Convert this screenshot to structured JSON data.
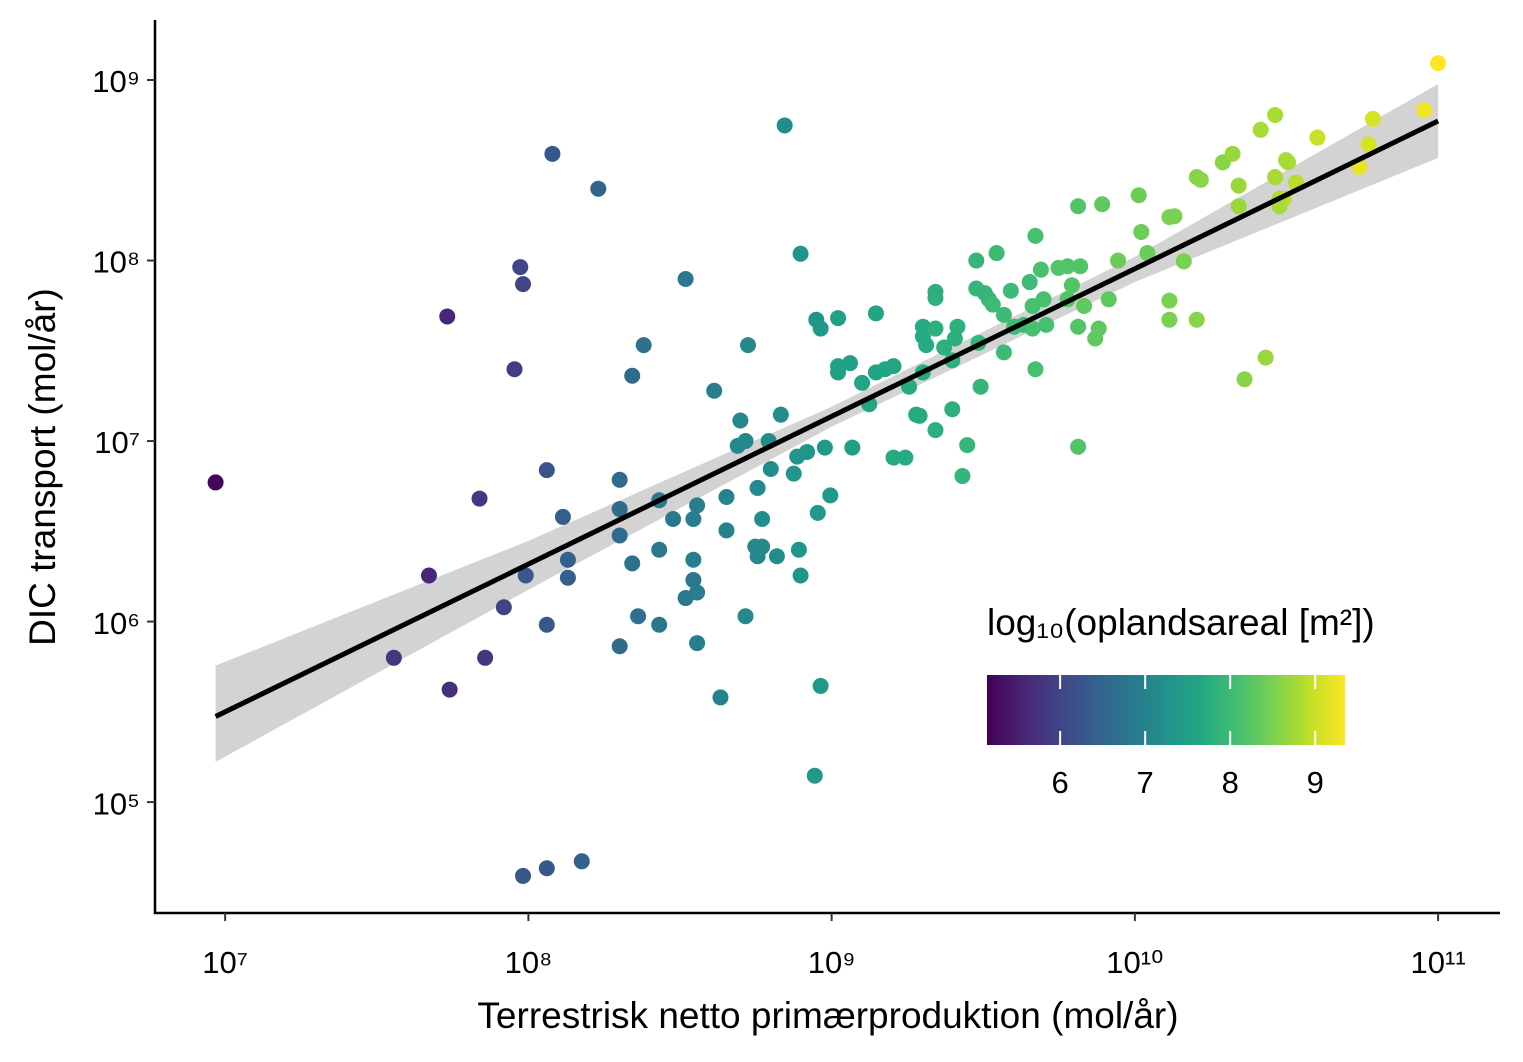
{
  "chart_data": {
    "type": "scatter",
    "x_label": "Terrestrisk netto primærproduktion (mol/år)",
    "y_label": "DIC transport (mol/år)",
    "log_x": true,
    "log_y": true,
    "grid": false,
    "xlim": [
      5870000.0,
      160000000000.0
    ],
    "ylim": [
      24300.0,
      2150000000.0
    ],
    "xticks": [
      {
        "value": 10000000.0,
        "label": "10⁷"
      },
      {
        "value": 100000000.0,
        "label": "10⁸"
      },
      {
        "value": 1000000000.0,
        "label": "10⁹"
      },
      {
        "value": 10000000000.0,
        "label": "10¹⁰"
      },
      {
        "value": 100000000000.0,
        "label": "10¹¹"
      }
    ],
    "yticks": [
      {
        "value": 100000.0,
        "label": "10⁵"
      },
      {
        "value": 1000000.0,
        "label": "10⁶"
      },
      {
        "value": 10000000.0,
        "label": "10⁷"
      },
      {
        "value": 100000000.0,
        "label": "10⁸"
      },
      {
        "value": 1000000000.0,
        "label": "10⁹"
      }
    ],
    "colormap": "viridis",
    "colorbar": {
      "title": "log₁₀(oplandsareal [m²])",
      "lim": [
        5.14,
        9.35
      ],
      "ticks": [
        6,
        7,
        8,
        9
      ],
      "position": "bottom-right"
    },
    "fit": {
      "color": "#000000",
      "band_color": "#d3d3d3",
      "x": [
        9300000.0,
        100000000.0,
        1000000000.0,
        10000000000.0,
        100000000000.0
      ],
      "y": [
        298000.0,
        2080000.0,
        13700000.0,
        90000000.0,
        593000000.0
      ],
      "lower": [
        167000.0,
        1500000.0,
        12000000.0,
        76000000.0,
        370000000.0
      ],
      "upper": [
        570000.0,
        2800000.0,
        15500000.0,
        105000000.0,
        950000000.0
      ]
    },
    "x": [
      9300000.0,
      36000000.0,
      47000000.0,
      54000000.0,
      55000000.0,
      69000000.0,
      72000000.0,
      83000000.0,
      90000000.0,
      94000000.0,
      96000000.0,
      98000000.0,
      96000000.0,
      115000000.0,
      150000000.0,
      115000000.0,
      115000000.0,
      120000000.0,
      130000000.0,
      135000000.0,
      135000000.0,
      170000000.0,
      200000000.0,
      200000000.0,
      200000000.0,
      200000000.0,
      220000000.0,
      220000000.0,
      230000000.0,
      240000000.0,
      270000000.0,
      270000000.0,
      270000000.0,
      300000000.0,
      330000000.0,
      330000000.0,
      350000000.0,
      360000000.0,
      350000000.0,
      360000000.0,
      350000000.0,
      360000000.0,
      410000000.0,
      430000000.0,
      450000000.0,
      450000000.0,
      500000000.0,
      490000000.0,
      520000000.0,
      520000000.0,
      530000000.0,
      560000000.0,
      570000000.0,
      570000000.0,
      590000000.0,
      590000000.0,
      620000000.0,
      630000000.0,
      660000000.0,
      680000000.0,
      700000000.0,
      750000000.0,
      770000000.0,
      780000000.0,
      790000000.0,
      790000000.0,
      830000000.0,
      880000000.0,
      890000000.0,
      900000000.0,
      920000000.0,
      920000000.0,
      950000000.0,
      990000000.0,
      1050000000.0,
      1050000000.0,
      1050000000.0,
      1150000000.0,
      1170000000.0,
      1260000000.0,
      1330000000.0,
      1400000000.0,
      1400000000.0,
      1500000000.0,
      1600000000.0,
      1600000000.0,
      1750000000.0,
      1800000000.0,
      1900000000.0,
      2000000000.0,
      1950000000.0,
      2000000000.0,
      2050000000.0,
      2000000000.0,
      2200000000.0,
      2200000000.0,
      2200000000.0,
      2200000000.0,
      2350000000.0,
      2500000000.0,
      2550000000.0,
      2600000000.0,
      2500000000.0,
      2700000000.0,
      2800000000.0,
      3000000000.0,
      3000000000.0,
      3050000000.0,
      3100000000.0,
      3200000000.0,
      3300000000.0,
      3400000000.0,
      3500000000.0,
      3700000000.0,
      3700000000.0,
      3900000000.0,
      4000000000.0,
      4300000000.0,
      4500000000.0,
      4600000000.0,
      4600000000.0,
      4700000000.0,
      4700000000.0,
      4900000000.0,
      5000000000.0,
      5100000000.0,
      5600000000.0,
      6000000000.0,
      6000000000.0,
      6200000000.0,
      6500000000.0,
      6500000000.0,
      6500000000.0,
      6600000000.0,
      6800000000.0,
      7400000000.0,
      7600000000.0,
      7800000000.0,
      8200000000.0,
      8800000000.0,
      10300000000.0,
      10500000000.0,
      11000000000.0,
      13000000000.0,
      13500000000.0,
      13000000000.0,
      13000000000.0,
      14500000000.0,
      16000000000.0,
      16500000000.0,
      16000000000.0,
      19500000000.0,
      21000000000.0,
      22000000000.0,
      22000000000.0,
      23000000000.0,
      26000000000.0,
      27000000000.0,
      29000000000.0,
      29000000000.0,
      30000000000.0,
      31000000000.0,
      31500000000.0,
      32000000000.0,
      30000000000.0,
      34000000000.0,
      40000000000.0,
      55000000000.0,
      59000000000.0,
      61000000000.0,
      90000000000.0,
      100000000000.0
    ],
    "values": [
      5900000.0,
      630000.0,
      1800000.0,
      49000000.0,
      420000.0,
      4800000.0,
      630000.0,
      1200000.0,
      25000000.0,
      92000000.0,
      74000000.0,
      1800000.0,
      39000.0,
      43000.0,
      47000.0,
      960000.0,
      6900000.0,
      390000000.0,
      3800000.0,
      2200000.0,
      1750000.0,
      250000000.0,
      6100000.0,
      3000000.0,
      4200000.0,
      730000.0,
      23000000.0,
      2100000.0,
      1070000.0,
      34000000.0,
      4700000.0,
      2500000.0,
      960000.0,
      3700000.0,
      79000000.0,
      1350000.0,
      1700000.0,
      1450000.0,
      2200000.0,
      4400000.0,
      3700000.0,
      760000.0,
      19000000.0,
      380000.0,
      4900000.0,
      3200000.0,
      13000000.0,
      9400000.0,
      10000000.0,
      1070000.0,
      34000000.0,
      2600000.0,
      5500000.0,
      2300000.0,
      2600000.0,
      3700000.0,
      10000000.0,
      7000000.0,
      2300000.0,
      14000000.0,
      560000000.0,
      6600000.0,
      8200000.0,
      2500000.0,
      109000000.0,
      1800000.0,
      8700000.0,
      140000.0,
      47000000.0,
      4000000.0,
      42000000.0,
      440000.0,
      9200000.0,
      5000000.0,
      48000000.0,
      26000000.0,
      24000000.0,
      27000000.0,
      9200000.0,
      21000000.0,
      16000000.0,
      51000000.0,
      24000000.0,
      25000000.0,
      26000000.0,
      8100000.0,
      8100000.0,
      20000000.0,
      14000000.0,
      24000000.0,
      13800000.0,
      43000000.0,
      34000000.0,
      38000000.0,
      67000000.0,
      11500000.0,
      42000000.0,
      62000000.0,
      33000000.0,
      15000000.0,
      37000000.0,
      43000000.0,
      28000000.0,
      6400000.0,
      9500000.0,
      70000000.0,
      100000000.0,
      35000000.0,
      20000000.0,
      66000000.0,
      61000000.0,
      57000000.0,
      110000000.0,
      50000000.0,
      31000000.0,
      68000000.0,
      43000000.0,
      44000000.0,
      76000000.0,
      56000000.0,
      42000000.0,
      137000000.0,
      25000000.0,
      89000000.0,
      61000000.0,
      44000000.0,
      91000000.0,
      61000000.0,
      93000000.0,
      73000000.0,
      43000000.0,
      200000000.0,
      9300000.0,
      93000000.0,
      56000000.0,
      37000000.0,
      42000000.0,
      205000000.0,
      61000000.0,
      100000000.0,
      230000000.0,
      144000000.0,
      110000000.0,
      174000000.0,
      176000000.0,
      60000000.0,
      47000000.0,
      99000000.0,
      290000000.0,
      280000000.0,
      47000000.0,
      350000000.0,
      390000000.0,
      260000000.0,
      200000000.0,
      22000000.0,
      530000000.0,
      29000000.0,
      640000000.0,
      290000000.0,
      220000000.0,
      220000000.0,
      360000000.0,
      350000000.0,
      200000000.0,
      270000000.0,
      480000000.0,
      330000000.0,
      440000000.0,
      610000000.0,
      680000000.0,
      1240000000.0
    ],
    "color_values": [
      5.2,
      5.8,
      5.6,
      5.6,
      5.7,
      5.8,
      5.8,
      6.0,
      5.9,
      6.0,
      6.0,
      6.3,
      6.3,
      6.3,
      6.4,
      6.3,
      6.2,
      6.3,
      6.4,
      6.4,
      6.4,
      6.5,
      6.6,
      6.6,
      6.6,
      6.6,
      6.6,
      6.7,
      6.7,
      6.7,
      6.8,
      6.8,
      6.8,
      6.8,
      6.8,
      6.8,
      6.8,
      6.9,
      6.9,
      6.9,
      6.9,
      6.9,
      6.9,
      7.0,
      7.0,
      7.0,
      7.1,
      7.1,
      7.1,
      7.1,
      7.1,
      7.1,
      7.1,
      7.1,
      7.1,
      7.2,
      7.2,
      7.2,
      7.2,
      7.2,
      7.2,
      7.3,
      7.3,
      7.3,
      7.3,
      7.3,
      7.3,
      7.4,
      7.3,
      7.4,
      7.4,
      7.4,
      7.4,
      7.4,
      7.5,
      7.5,
      7.5,
      7.5,
      7.5,
      7.6,
      7.6,
      7.6,
      7.6,
      7.6,
      7.6,
      7.7,
      7.7,
      7.7,
      7.7,
      7.7,
      7.7,
      7.7,
      7.7,
      7.7,
      7.8,
      7.8,
      7.8,
      7.8,
      7.8,
      7.8,
      7.8,
      7.8,
      7.8,
      7.9,
      7.9,
      7.9,
      7.9,
      7.9,
      7.9,
      7.9,
      7.9,
      8.0,
      8.0,
      8.0,
      8.0,
      8.0,
      8.0,
      8.0,
      8.0,
      8.1,
      8.1,
      8.1,
      8.1,
      8.1,
      8.1,
      8.1,
      8.2,
      8.2,
      8.2,
      8.2,
      8.2,
      8.2,
      8.2,
      8.2,
      8.3,
      8.3,
      8.3,
      8.3,
      8.3,
      8.4,
      8.4,
      8.4,
      8.4,
      8.5,
      8.5,
      8.5,
      8.5,
      8.5,
      8.6,
      8.6,
      8.6,
      8.6,
      8.7,
      8.7,
      8.7,
      8.6,
      8.8,
      8.7,
      8.8,
      8.8,
      8.8,
      8.9,
      8.8,
      8.8,
      8.8,
      8.9,
      9.0,
      9.2,
      9.1,
      9.1,
      9.3,
      9.35
    ]
  }
}
